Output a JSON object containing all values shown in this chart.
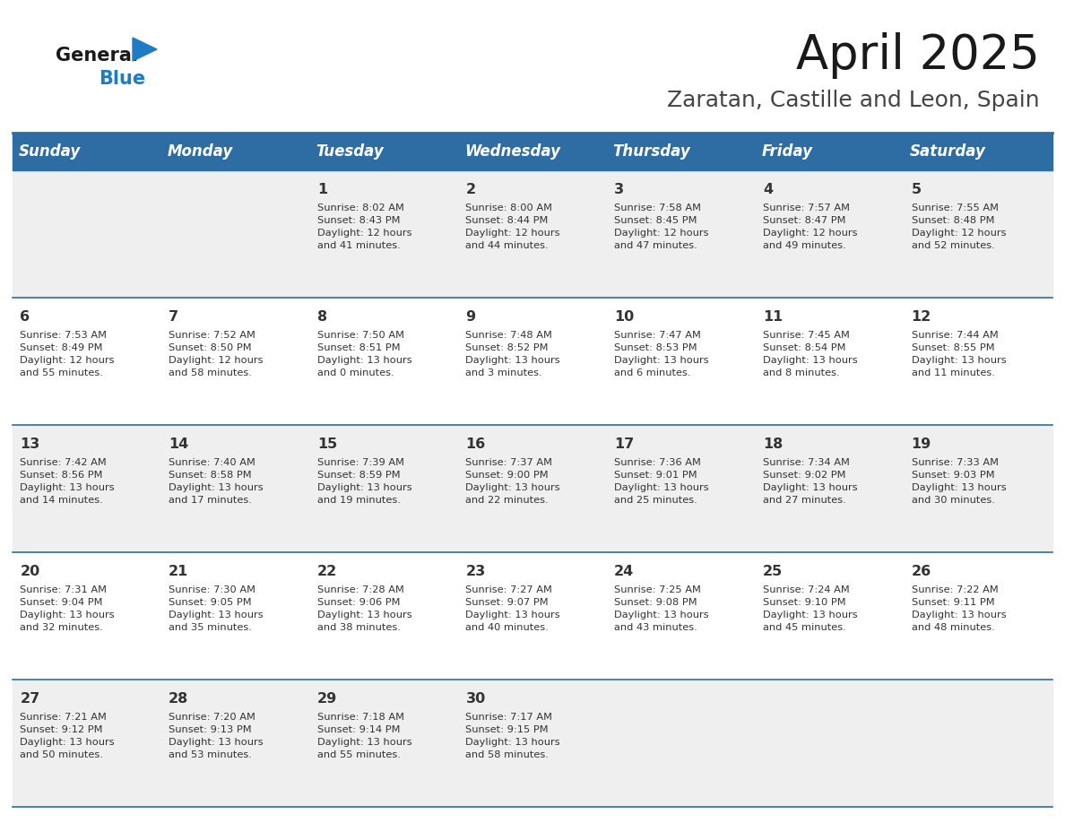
{
  "title": "April 2025",
  "subtitle": "Zaratan, Castille and Leon, Spain",
  "header_bg_color": "#2E6DA4",
  "header_text_color": "#FFFFFF",
  "day_names": [
    "Sunday",
    "Monday",
    "Tuesday",
    "Wednesday",
    "Thursday",
    "Friday",
    "Saturday"
  ],
  "row_bg_even": "#EFEFEF",
  "row_bg_odd": "#FFFFFF",
  "cell_text_color": "#333333",
  "divider_color": "#2E6DA4",
  "logo_general_color": "#1a1a1a",
  "logo_blue_color": "#1E7BC4",
  "calendar": [
    [
      {
        "day": null,
        "info": ""
      },
      {
        "day": null,
        "info": ""
      },
      {
        "day": 1,
        "info": "Sunrise: 8:02 AM\nSunset: 8:43 PM\nDaylight: 12 hours\nand 41 minutes."
      },
      {
        "day": 2,
        "info": "Sunrise: 8:00 AM\nSunset: 8:44 PM\nDaylight: 12 hours\nand 44 minutes."
      },
      {
        "day": 3,
        "info": "Sunrise: 7:58 AM\nSunset: 8:45 PM\nDaylight: 12 hours\nand 47 minutes."
      },
      {
        "day": 4,
        "info": "Sunrise: 7:57 AM\nSunset: 8:47 PM\nDaylight: 12 hours\nand 49 minutes."
      },
      {
        "day": 5,
        "info": "Sunrise: 7:55 AM\nSunset: 8:48 PM\nDaylight: 12 hours\nand 52 minutes."
      }
    ],
    [
      {
        "day": 6,
        "info": "Sunrise: 7:53 AM\nSunset: 8:49 PM\nDaylight: 12 hours\nand 55 minutes."
      },
      {
        "day": 7,
        "info": "Sunrise: 7:52 AM\nSunset: 8:50 PM\nDaylight: 12 hours\nand 58 minutes."
      },
      {
        "day": 8,
        "info": "Sunrise: 7:50 AM\nSunset: 8:51 PM\nDaylight: 13 hours\nand 0 minutes."
      },
      {
        "day": 9,
        "info": "Sunrise: 7:48 AM\nSunset: 8:52 PM\nDaylight: 13 hours\nand 3 minutes."
      },
      {
        "day": 10,
        "info": "Sunrise: 7:47 AM\nSunset: 8:53 PM\nDaylight: 13 hours\nand 6 minutes."
      },
      {
        "day": 11,
        "info": "Sunrise: 7:45 AM\nSunset: 8:54 PM\nDaylight: 13 hours\nand 8 minutes."
      },
      {
        "day": 12,
        "info": "Sunrise: 7:44 AM\nSunset: 8:55 PM\nDaylight: 13 hours\nand 11 minutes."
      }
    ],
    [
      {
        "day": 13,
        "info": "Sunrise: 7:42 AM\nSunset: 8:56 PM\nDaylight: 13 hours\nand 14 minutes."
      },
      {
        "day": 14,
        "info": "Sunrise: 7:40 AM\nSunset: 8:58 PM\nDaylight: 13 hours\nand 17 minutes."
      },
      {
        "day": 15,
        "info": "Sunrise: 7:39 AM\nSunset: 8:59 PM\nDaylight: 13 hours\nand 19 minutes."
      },
      {
        "day": 16,
        "info": "Sunrise: 7:37 AM\nSunset: 9:00 PM\nDaylight: 13 hours\nand 22 minutes."
      },
      {
        "day": 17,
        "info": "Sunrise: 7:36 AM\nSunset: 9:01 PM\nDaylight: 13 hours\nand 25 minutes."
      },
      {
        "day": 18,
        "info": "Sunrise: 7:34 AM\nSunset: 9:02 PM\nDaylight: 13 hours\nand 27 minutes."
      },
      {
        "day": 19,
        "info": "Sunrise: 7:33 AM\nSunset: 9:03 PM\nDaylight: 13 hours\nand 30 minutes."
      }
    ],
    [
      {
        "day": 20,
        "info": "Sunrise: 7:31 AM\nSunset: 9:04 PM\nDaylight: 13 hours\nand 32 minutes."
      },
      {
        "day": 21,
        "info": "Sunrise: 7:30 AM\nSunset: 9:05 PM\nDaylight: 13 hours\nand 35 minutes."
      },
      {
        "day": 22,
        "info": "Sunrise: 7:28 AM\nSunset: 9:06 PM\nDaylight: 13 hours\nand 38 minutes."
      },
      {
        "day": 23,
        "info": "Sunrise: 7:27 AM\nSunset: 9:07 PM\nDaylight: 13 hours\nand 40 minutes."
      },
      {
        "day": 24,
        "info": "Sunrise: 7:25 AM\nSunset: 9:08 PM\nDaylight: 13 hours\nand 43 minutes."
      },
      {
        "day": 25,
        "info": "Sunrise: 7:24 AM\nSunset: 9:10 PM\nDaylight: 13 hours\nand 45 minutes."
      },
      {
        "day": 26,
        "info": "Sunrise: 7:22 AM\nSunset: 9:11 PM\nDaylight: 13 hours\nand 48 minutes."
      }
    ],
    [
      {
        "day": 27,
        "info": "Sunrise: 7:21 AM\nSunset: 9:12 PM\nDaylight: 13 hours\nand 50 minutes."
      },
      {
        "day": 28,
        "info": "Sunrise: 7:20 AM\nSunset: 9:13 PM\nDaylight: 13 hours\nand 53 minutes."
      },
      {
        "day": 29,
        "info": "Sunrise: 7:18 AM\nSunset: 9:14 PM\nDaylight: 13 hours\nand 55 minutes."
      },
      {
        "day": 30,
        "info": "Sunrise: 7:17 AM\nSunset: 9:15 PM\nDaylight: 13 hours\nand 58 minutes."
      },
      {
        "day": null,
        "info": ""
      },
      {
        "day": null,
        "info": ""
      },
      {
        "day": null,
        "info": ""
      }
    ]
  ]
}
